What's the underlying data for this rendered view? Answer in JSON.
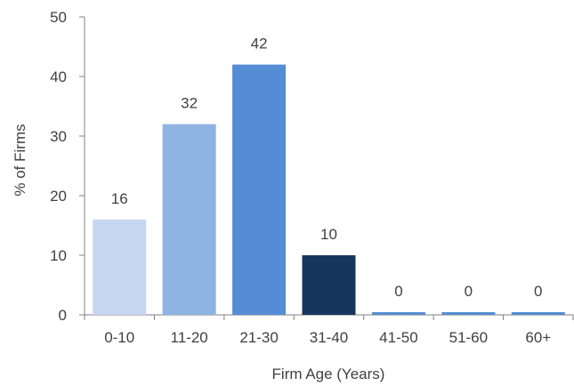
{
  "chart_data": {
    "type": "bar",
    "categories": [
      "0-10",
      "11-20",
      "21-30",
      "31-40",
      "41-50",
      "51-60",
      "60+"
    ],
    "values": [
      16,
      32,
      42,
      10,
      0,
      0,
      0
    ],
    "data_labels": [
      "16",
      "32",
      "42",
      "10",
      "0",
      "0",
      "0"
    ],
    "bar_colors": [
      "#c5d7f0",
      "#8fb3e3",
      "#548dd4",
      "#17365d",
      "#548dd4",
      "#548dd4",
      "#548dd4"
    ],
    "xlabel": "Firm Age (Years)",
    "ylabel": "% of Firms",
    "ylim": [
      0,
      50
    ],
    "yticks": [
      0,
      10,
      20,
      30,
      40,
      50
    ],
    "grid": false,
    "legend": "none"
  }
}
